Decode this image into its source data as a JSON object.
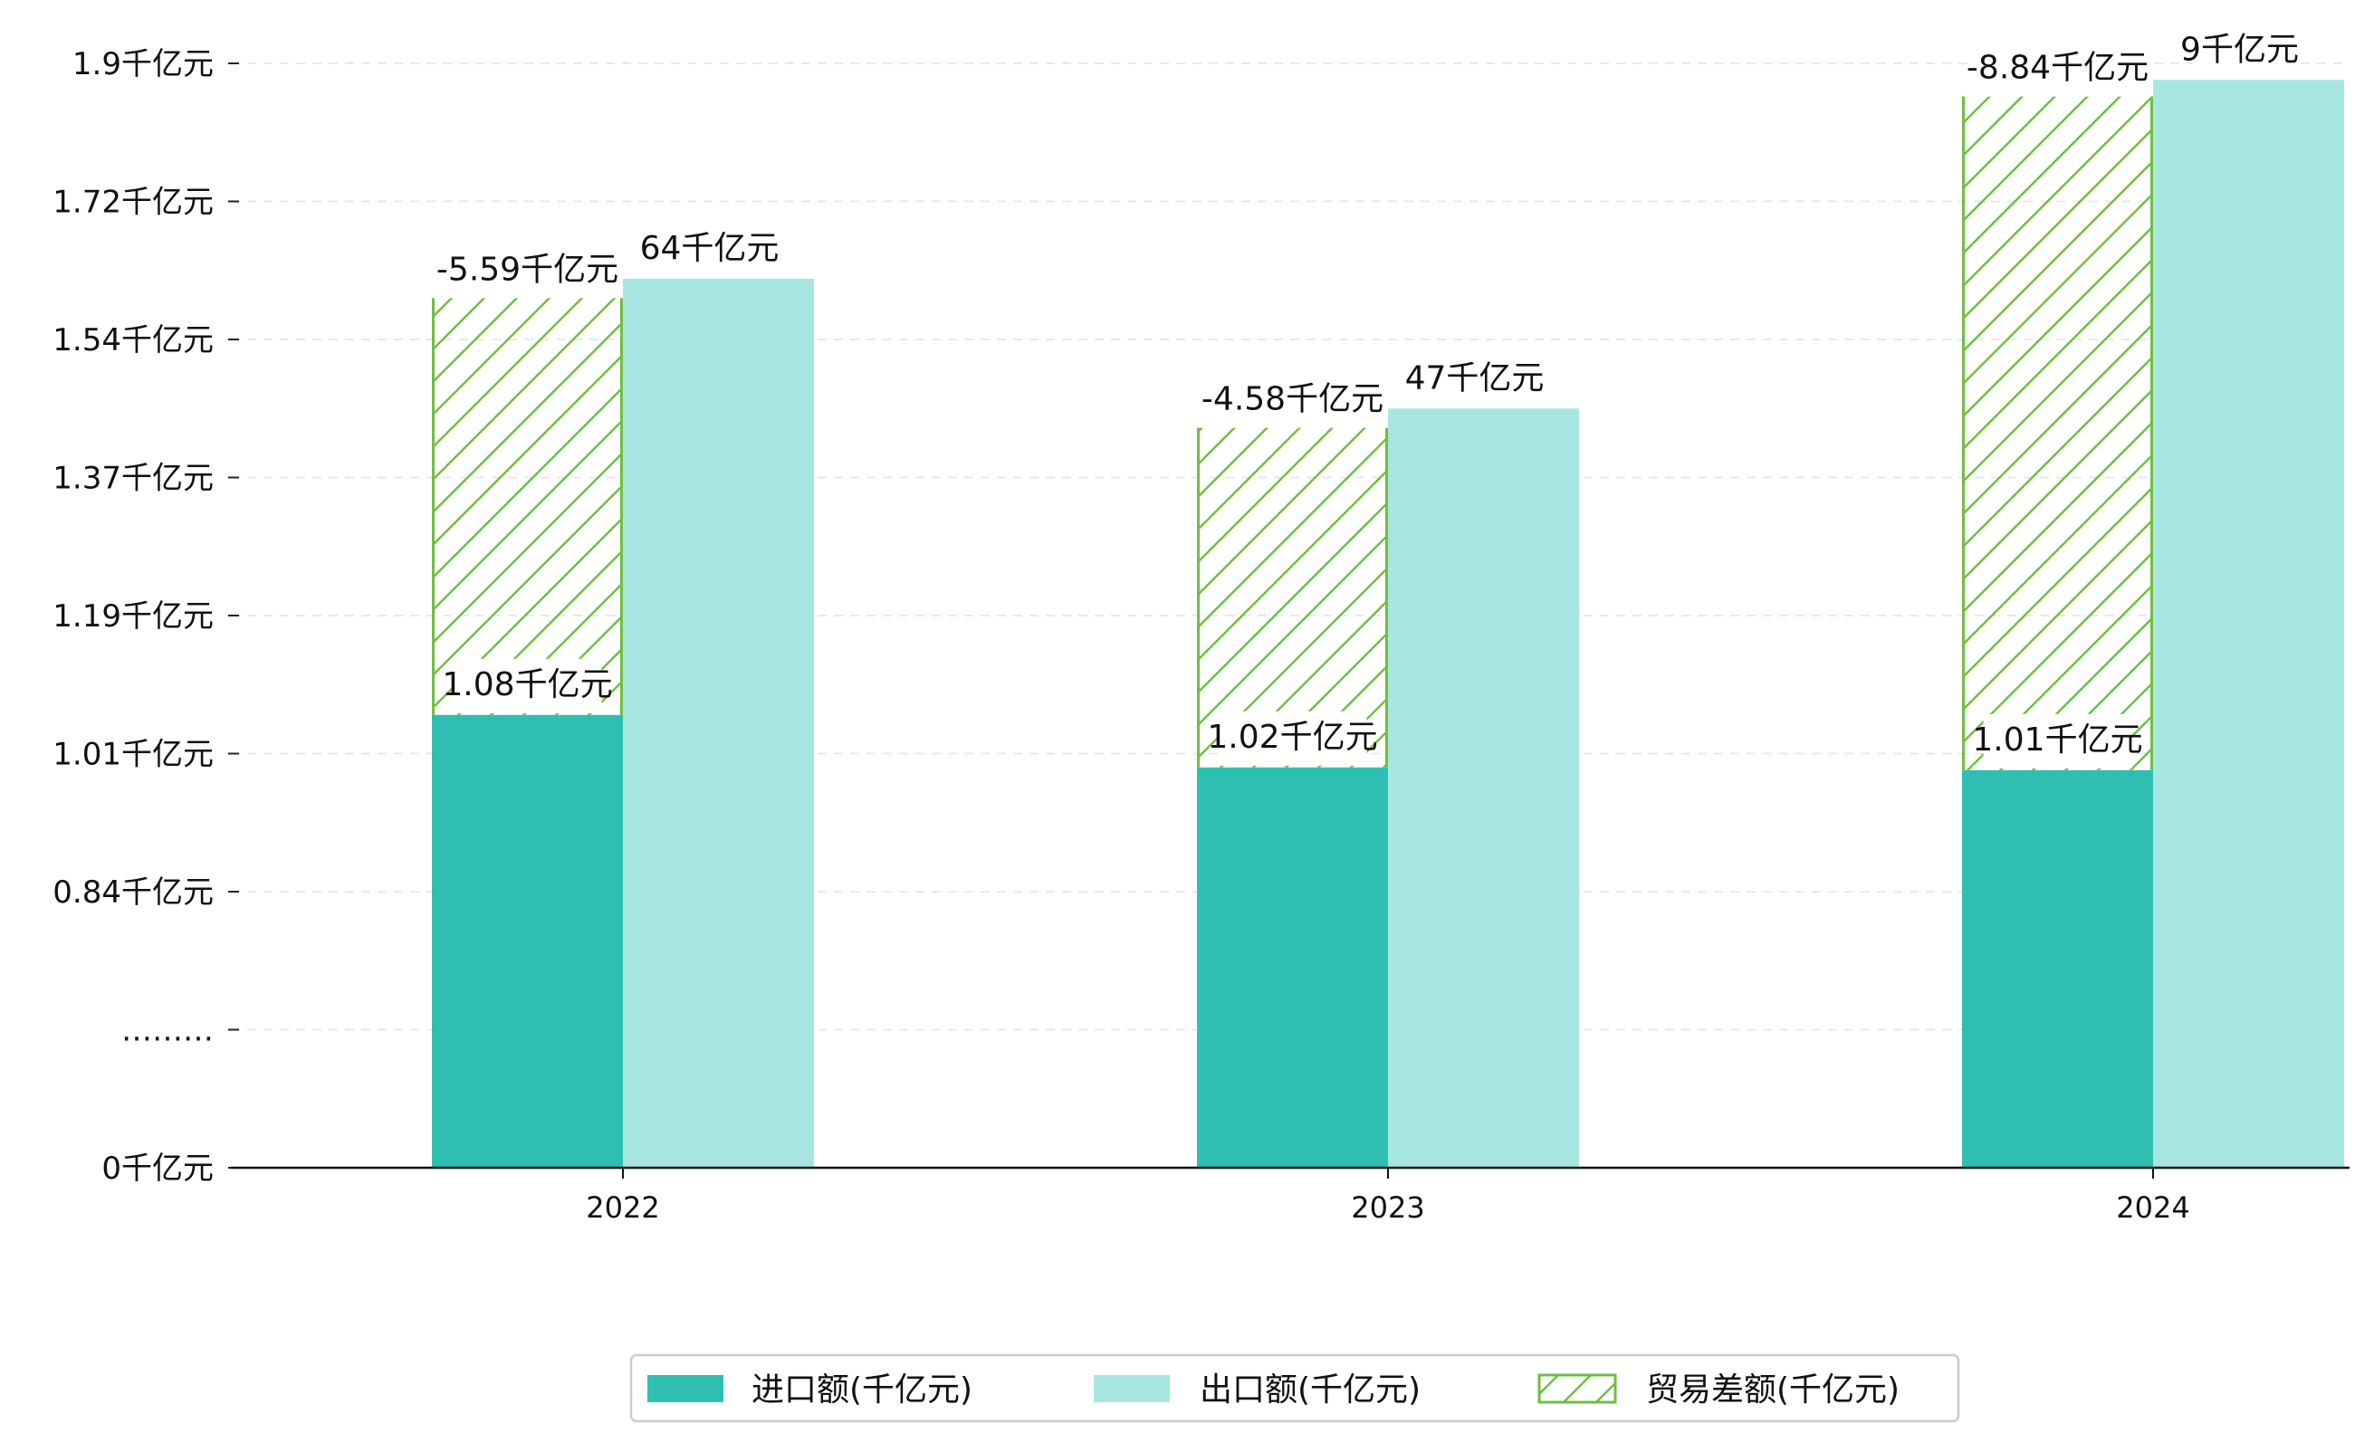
{
  "chart_data": {
    "type": "bar",
    "categories": [
      "2022",
      "2023",
      "2024"
    ],
    "series": [
      {
        "name": "进口额(千亿元)",
        "values": [
          0.82,
          0.725,
          0.72
        ],
        "data_labels": [
          "1.08千亿元",
          "1.02千亿元",
          "1.01千亿元"
        ],
        "color": "#2fbfb2"
      },
      {
        "name": "出口额(千亿元)",
        "values": [
          1.61,
          1.375,
          1.97
        ],
        "data_labels": [
          "64千亿元",
          "47千亿元",
          "9千亿元"
        ],
        "color": "#a8e7e1"
      },
      {
        "name": "贸易差额(千亿元)",
        "base": [
          0.82,
          0.725,
          0.72
        ],
        "top": [
          1.575,
          1.34,
          1.94
        ],
        "data_labels": [
          "-5.59千亿元",
          "-4.58千亿元",
          "-8.84千亿元"
        ],
        "color": "#6fbf40",
        "hatch": true
      }
    ],
    "y_ticks": [
      {
        "value": 0,
        "label": "0千亿元"
      },
      {
        "value": 0.25,
        "label": "………"
      },
      {
        "value": 0.5,
        "label": "0.84千亿元"
      },
      {
        "value": 0.75,
        "label": "1.01千亿元"
      },
      {
        "value": 1.0,
        "label": "1.19千亿元"
      },
      {
        "value": 1.25,
        "label": "1.37千亿元"
      },
      {
        "value": 1.5,
        "label": "1.54千亿元"
      },
      {
        "value": 1.75,
        "label": "1.72千亿元"
      },
      {
        "value": 2.0,
        "label": "1.9千亿元"
      }
    ],
    "ylim": [
      0,
      2.0
    ],
    "grid": "horizontal dashed",
    "legend_position": "bottom-center",
    "title": "",
    "xlabel": "",
    "ylabel": ""
  }
}
